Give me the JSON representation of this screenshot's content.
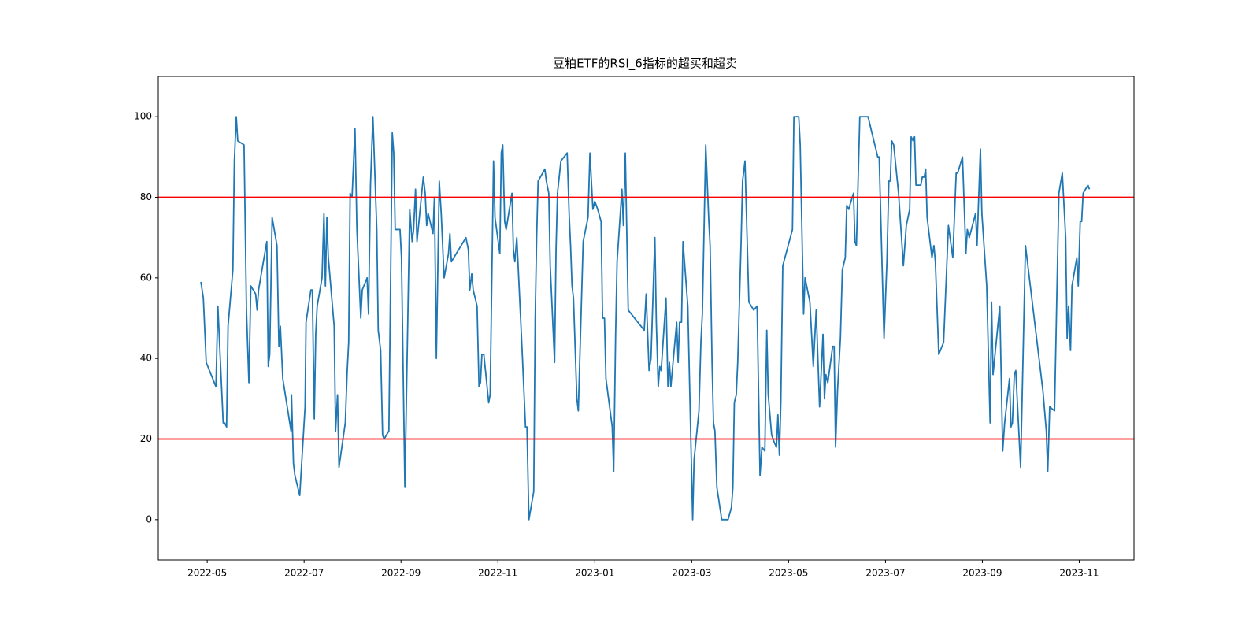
{
  "chart_data": {
    "type": "line",
    "title": "豆粕ETF的RSI_6指标的超买和超卖",
    "x": [
      4.87,
      4.92,
      4.98,
      5.18,
      5.22,
      5.33,
      5.36,
      5.4,
      5.43,
      5.53,
      5.56,
      5.6,
      5.63,
      5.76,
      5.81,
      5.86,
      5.9,
      6.0,
      6.03,
      6.06,
      6.23,
      6.26,
      6.29,
      6.34,
      6.44,
      6.48,
      6.51,
      6.56,
      6.73,
      6.74,
      6.78,
      6.81,
      6.91,
      7.02,
      7.04,
      7.14,
      7.17,
      7.21,
      7.24,
      7.27,
      7.37,
      7.41,
      7.44,
      7.47,
      7.5,
      7.62,
      7.65,
      7.69,
      7.72,
      7.85,
      7.89,
      7.92,
      7.95,
      7.99,
      8.05,
      8.09,
      8.17,
      8.2,
      8.3,
      8.33,
      8.37,
      8.42,
      8.5,
      8.53,
      8.58,
      8.62,
      8.65,
      8.75,
      8.82,
      8.85,
      8.88,
      8.98,
      9.01,
      9.08,
      9.18,
      9.23,
      9.26,
      9.3,
      9.33,
      9.46,
      9.5,
      9.53,
      9.56,
      9.66,
      9.69,
      9.73,
      9.79,
      9.83,
      9.89,
      9.98,
      10.01,
      10.04,
      10.34,
      10.39,
      10.42,
      10.46,
      10.49,
      10.57,
      10.61,
      10.64,
      10.67,
      10.71,
      10.81,
      10.84,
      10.91,
      10.94,
      11.04,
      11.07,
      11.1,
      11.14,
      11.17,
      11.29,
      11.32,
      11.35,
      11.39,
      11.5,
      11.57,
      11.6,
      11.64,
      11.74,
      11.77,
      11.8,
      11.83,
      11.97,
      12.0,
      12.05,
      12.08,
      12.17,
      12.2,
      12.23,
      12.3,
      12.43,
      12.47,
      12.5,
      12.53,
      12.56,
      12.63,
      12.66,
      12.76,
      12.86,
      12.9,
      12.96,
      13.0,
      13.06,
      13.13,
      13.16,
      13.2,
      13.23,
      13.36,
      13.39,
      13.43,
      13.46,
      13.56,
      13.59,
      13.63,
      13.69,
      14.02,
      14.06,
      14.12,
      14.16,
      14.24,
      14.27,
      14.31,
      14.34,
      14.37,
      14.47,
      14.51,
      14.54,
      14.57,
      14.69,
      14.72,
      14.75,
      14.79,
      14.82,
      14.92,
      15.02,
      15.05,
      15.15,
      15.19,
      15.22,
      15.29,
      15.35,
      15.38,
      15.42,
      15.45,
      15.48,
      15.52,
      15.62,
      15.75,
      15.82,
      15.85,
      15.88,
      15.92,
      15.95,
      16.02,
      16.05,
      16.1,
      16.18,
      16.28,
      16.35,
      16.41,
      16.45,
      16.51,
      16.55,
      16.58,
      16.65,
      16.71,
      16.75,
      16.78,
      16.81,
      16.84,
      16.88,
      17.08,
      17.11,
      17.21,
      17.24,
      17.31,
      17.34,
      17.44,
      17.51,
      17.57,
      17.64,
      17.71,
      17.74,
      17.77,
      17.81,
      17.91,
      17.94,
      17.97,
      18.01,
      18.07,
      18.11,
      18.17,
      18.2,
      18.24,
      18.34,
      18.37,
      18.4,
      18.47,
      18.64,
      18.7,
      18.84,
      18.87,
      18.97,
      19.03,
      19.07,
      19.1,
      19.13,
      19.17,
      19.27,
      19.37,
      19.43,
      19.5,
      19.53,
      19.57,
      19.6,
      19.63,
      19.73,
      19.76,
      19.8,
      19.83,
      19.86,
      19.96,
      20.0,
      20.03,
      20.1,
      20.2,
      20.3,
      20.39,
      20.46,
      20.49,
      20.59,
      20.66,
      20.69,
      20.73,
      20.86,
      20.89,
      20.96,
      20.99,
      21.09,
      21.16,
      21.19,
      21.22,
      21.36,
      21.42,
      21.46,
      21.56,
      21.59,
      21.62,
      21.66,
      21.69,
      21.79,
      21.89,
      22.25,
      22.32,
      22.35,
      22.39,
      22.49,
      22.58,
      22.65,
      22.72,
      22.75,
      22.78,
      22.82,
      22.85,
      22.95,
      22.98,
      23.02,
      23.05,
      23.08,
      23.18,
      23.21
    ],
    "series": [
      {
        "name": "RSI_6",
        "color": "#1f77b4",
        "values": [
          59,
          55,
          39,
          33,
          53,
          24,
          24,
          23,
          48,
          62,
          89,
          100,
          94,
          93,
          52,
          34,
          58,
          56,
          52,
          57,
          69,
          38,
          41,
          75,
          68,
          43,
          48,
          35,
          22,
          31,
          14,
          11,
          6,
          28,
          49,
          57,
          57,
          25,
          46,
          53,
          60,
          76,
          58,
          75,
          65,
          48,
          22,
          31,
          13,
          24,
          37,
          44,
          81,
          80,
          97,
          72,
          50,
          57,
          60,
          51,
          83,
          100,
          72,
          47,
          42,
          21,
          20,
          22,
          96,
          91,
          72,
          72,
          65,
          8,
          77,
          69,
          72,
          82,
          69,
          85,
          81,
          73,
          76,
          71,
          80,
          40,
          84,
          76,
          60,
          66,
          71,
          64,
          70,
          67,
          57,
          61,
          57,
          53,
          33,
          34,
          41,
          41,
          29,
          31,
          89,
          75,
          66,
          91,
          93,
          74,
          72,
          81,
          67,
          64,
          70,
          42,
          23,
          23,
          0,
          7,
          50,
          70,
          84,
          87,
          84,
          81,
          63,
          39,
          67,
          81,
          89,
          91,
          76,
          68,
          58,
          55,
          30,
          27,
          69,
          75,
          91,
          77,
          79,
          77,
          74,
          50,
          50,
          35,
          23,
          12,
          46,
          64,
          82,
          73,
          91,
          52,
          47,
          56,
          37,
          40,
          70,
          49,
          33,
          38,
          37,
          55,
          33,
          39,
          33,
          49,
          39,
          49,
          49,
          69,
          53,
          0,
          15,
          27,
          44,
          51,
          93,
          75,
          68,
          39,
          24,
          22,
          8,
          0,
          0,
          3,
          8,
          29,
          31,
          39,
          69,
          84,
          89,
          54,
          52,
          53,
          11,
          18,
          17,
          47,
          31,
          21,
          19,
          18,
          26,
          16,
          29,
          63,
          72,
          100,
          100,
          93,
          51,
          60,
          54,
          38,
          52,
          28,
          46,
          30,
          36,
          34,
          43,
          43,
          18,
          32,
          45,
          62,
          65,
          78,
          77,
          81,
          69,
          68,
          100,
          100,
          97,
          90,
          90,
          45,
          64,
          84,
          84,
          94,
          93,
          81,
          63,
          73,
          77,
          95,
          94,
          95,
          83,
          83,
          85,
          85,
          87,
          75,
          65,
          68,
          64,
          41,
          44,
          73,
          65,
          86,
          86,
          90,
          66,
          72,
          70,
          76,
          68,
          92,
          76,
          58,
          24,
          54,
          36,
          53,
          17,
          24,
          35,
          23,
          24,
          36,
          37,
          13,
          68,
          32,
          22,
          12,
          28,
          27,
          81,
          86,
          70,
          45,
          53,
          42,
          58,
          65,
          58,
          74,
          74,
          81,
          83,
          82
        ]
      }
    ],
    "hlines": [
      20,
      80
    ],
    "hline_color": "#ff0000",
    "xlim": [
      3.99,
      24.13
    ],
    "xticks": [
      {
        "value": 5,
        "label": "2022-05"
      },
      {
        "value": 7,
        "label": "2022-07"
      },
      {
        "value": 9,
        "label": "2022-09"
      },
      {
        "value": 11,
        "label": "2022-11"
      },
      {
        "value": 13,
        "label": "2023-01"
      },
      {
        "value": 15,
        "label": "2023-03"
      },
      {
        "value": 17,
        "label": "2023-05"
      },
      {
        "value": 19,
        "label": "2023-07"
      },
      {
        "value": 21,
        "label": "2023-09"
      },
      {
        "value": 23,
        "label": "2023-11"
      }
    ],
    "ylim": [
      -10,
      110
    ],
    "yticks": [
      0,
      20,
      40,
      60,
      80,
      100
    ],
    "grid": false
  }
}
